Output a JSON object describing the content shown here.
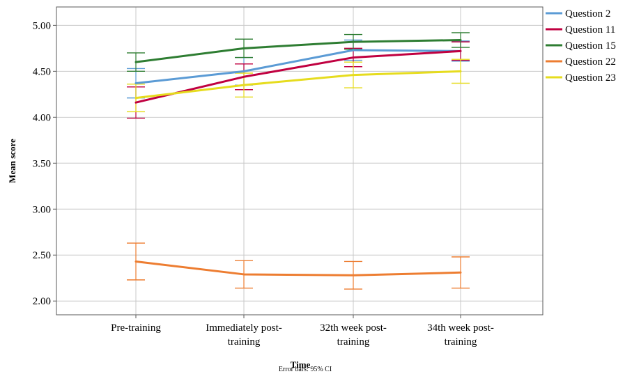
{
  "chart_data": {
    "type": "line",
    "title": "",
    "xlabel": "Time",
    "ylabel": "Mean score",
    "footnote": "Error bars: 95% CI",
    "categories": [
      [
        "Pre-training"
      ],
      [
        "Immediately post-",
        "training"
      ],
      [
        "32th week post-",
        "training"
      ],
      [
        "34th week post-",
        "training"
      ]
    ],
    "ylim": [
      1.85,
      5.2
    ],
    "yticks": [
      "2.00",
      "2.50",
      "3.00",
      "3.50",
      "4.00",
      "4.50",
      "5.00"
    ],
    "grid": true,
    "legend_position": "top-right",
    "series": [
      {
        "name": "Question 2",
        "color": "#5b9bd5",
        "values": [
          4.37,
          4.5,
          4.73,
          4.72
        ],
        "ci_low": [
          4.21,
          4.35,
          4.62,
          4.61
        ],
        "ci_high": [
          4.53,
          4.65,
          4.84,
          4.83
        ]
      },
      {
        "name": "Question 11",
        "color": "#c00040",
        "values": [
          4.16,
          4.44,
          4.65,
          4.72
        ],
        "ci_low": [
          3.99,
          4.3,
          4.55,
          4.62
        ],
        "ci_high": [
          4.33,
          4.58,
          4.75,
          4.82
        ]
      },
      {
        "name": "Question 15",
        "color": "#2e7d32",
        "values": [
          4.6,
          4.75,
          4.82,
          4.84
        ],
        "ci_low": [
          4.5,
          4.65,
          4.74,
          4.76
        ],
        "ci_high": [
          4.7,
          4.85,
          4.9,
          4.92
        ]
      },
      {
        "name": "Question 22",
        "color": "#ed7d31",
        "values": [
          2.43,
          2.29,
          2.28,
          2.31
        ],
        "ci_low": [
          2.23,
          2.14,
          2.13,
          2.14
        ],
        "ci_high": [
          2.63,
          2.44,
          2.43,
          2.48
        ]
      },
      {
        "name": "Question 23",
        "color": "#e6dc1e",
        "values": [
          4.21,
          4.35,
          4.46,
          4.5
        ],
        "ci_low": [
          4.06,
          4.22,
          4.32,
          4.37
        ],
        "ci_high": [
          4.36,
          4.48,
          4.6,
          4.63
        ]
      }
    ]
  }
}
